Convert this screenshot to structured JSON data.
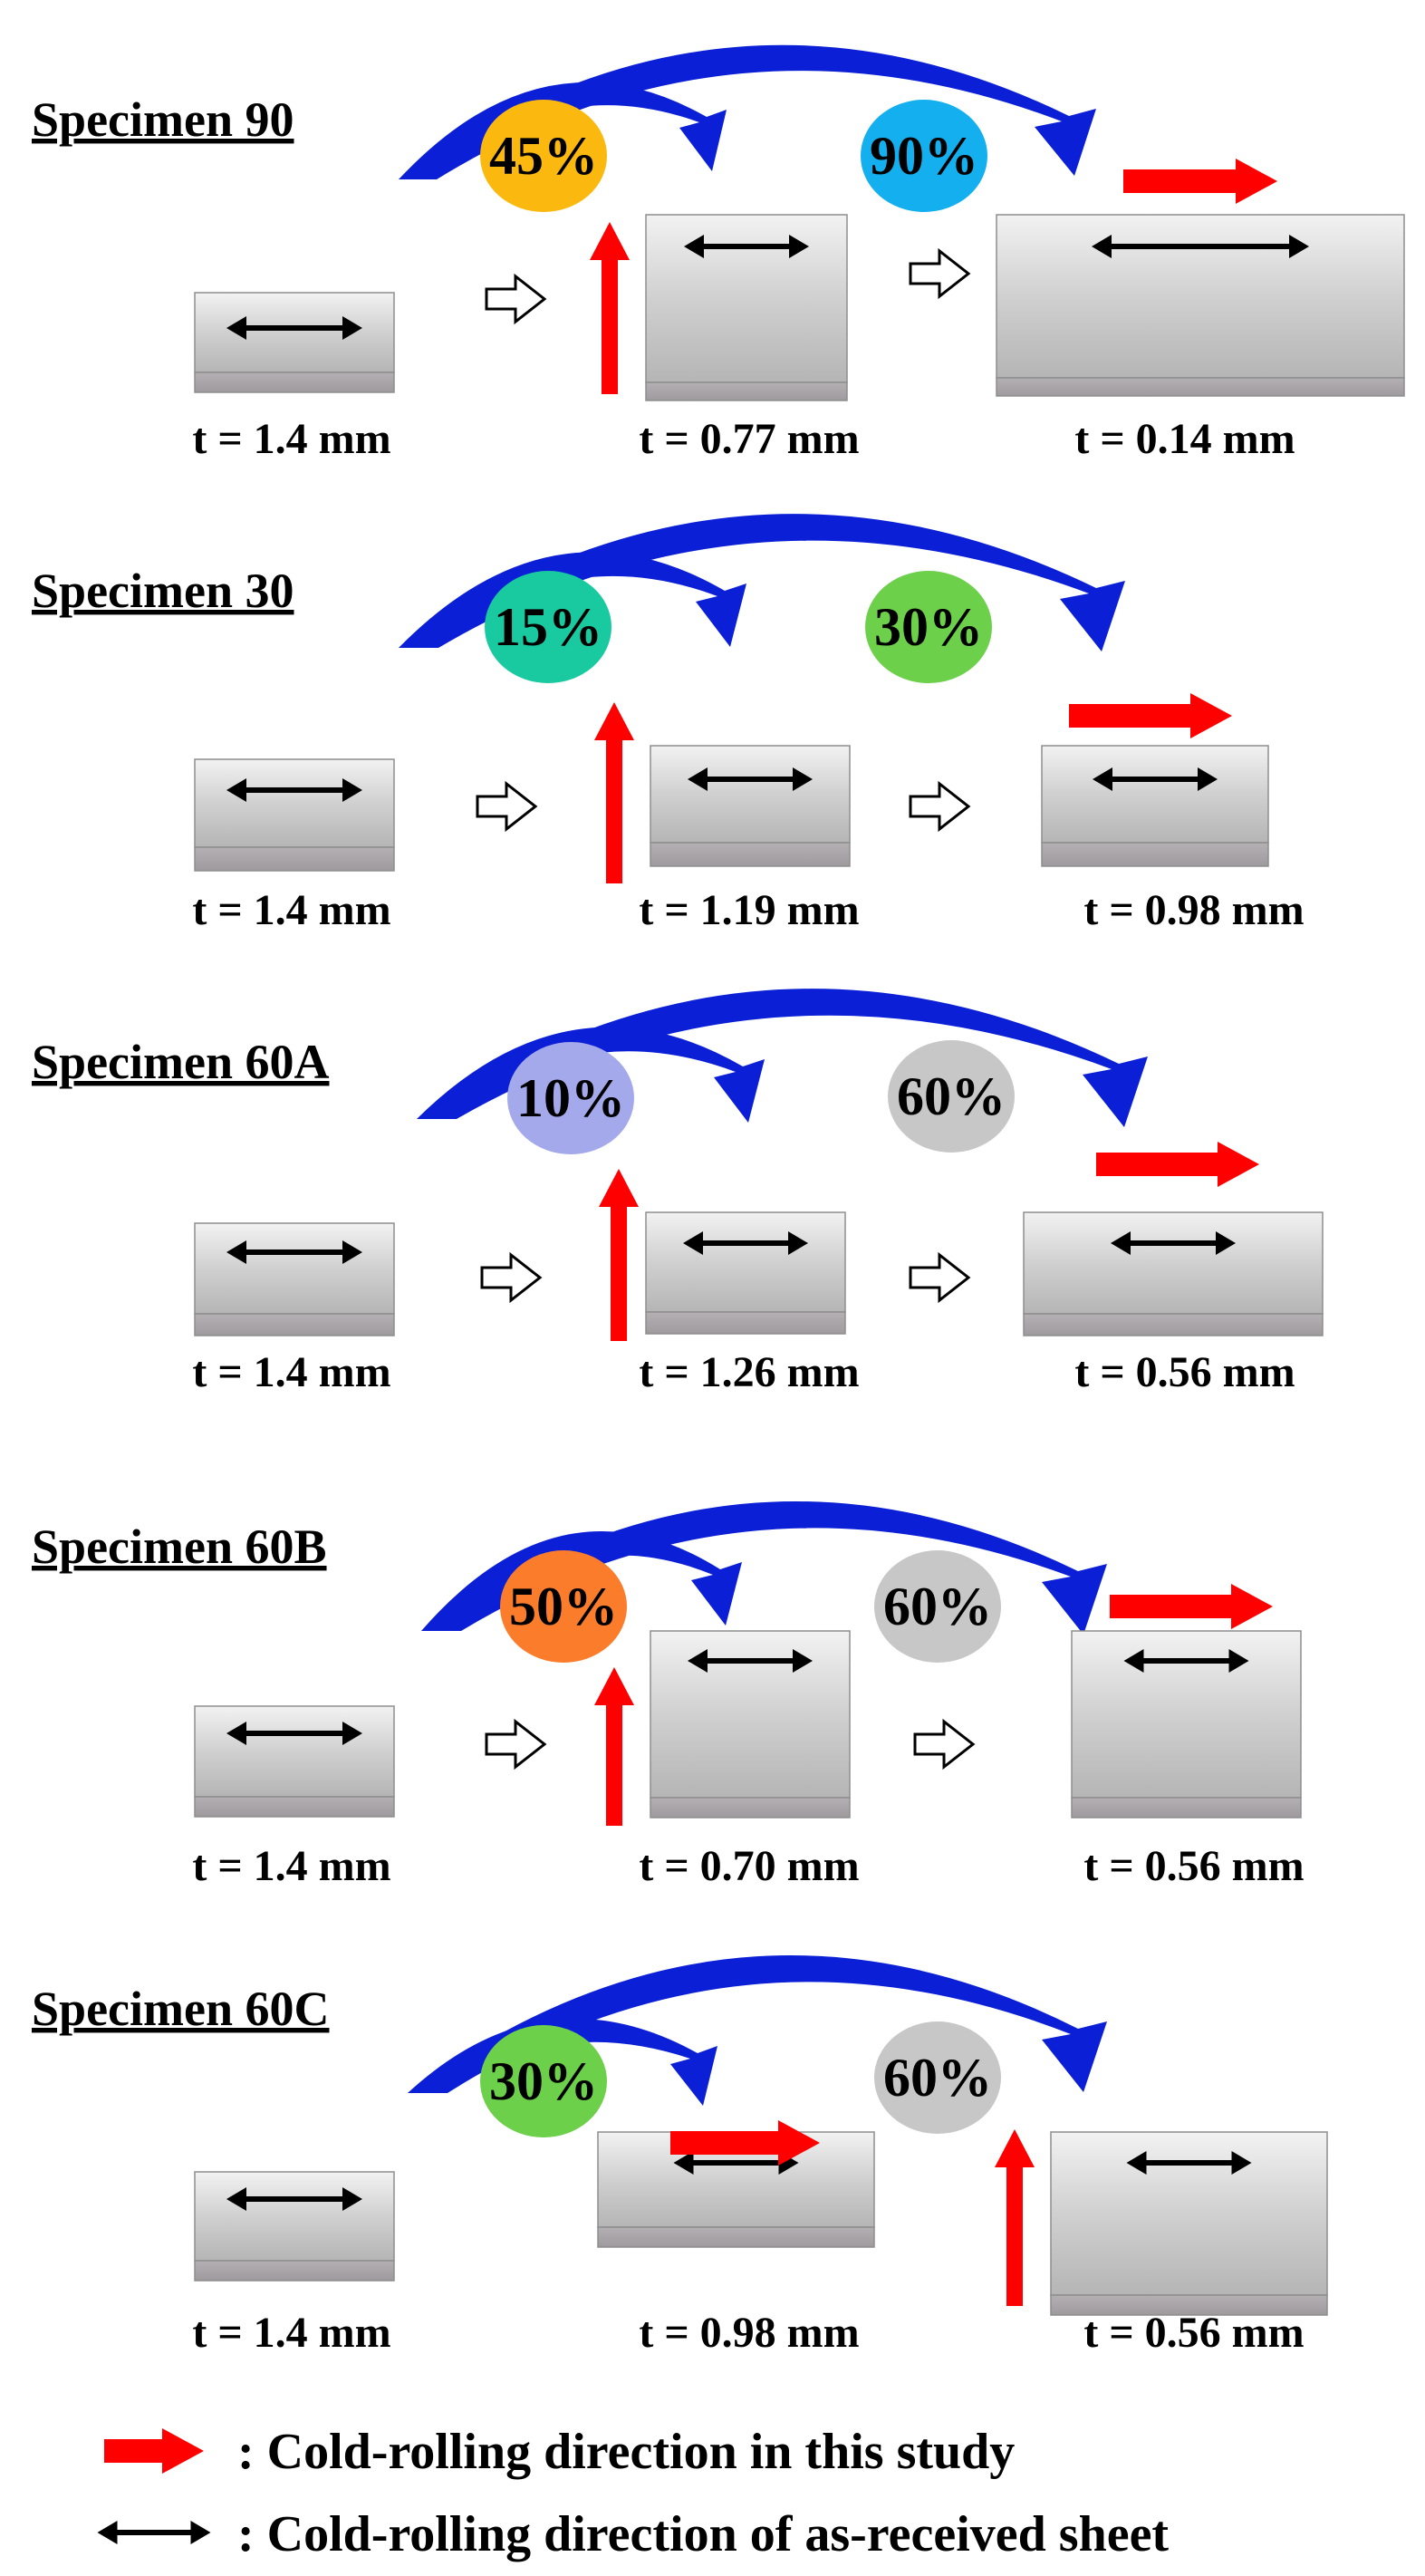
{
  "specimens": [
    {
      "title": "Specimen 90",
      "reductions": [
        {
          "label": "45%",
          "color": "#FBB80E"
        },
        {
          "label": "90%",
          "color": "#13AFEF"
        }
      ],
      "thickness": [
        "t = 1.4 mm",
        "t = 0.77 mm",
        "t = 0.14 mm"
      ]
    },
    {
      "title": "Specimen 30",
      "reductions": [
        {
          "label": "15%",
          "color": "#19C9A0"
        },
        {
          "label": "30%",
          "color": "#6DD04A"
        }
      ],
      "thickness": [
        "t = 1.4 mm",
        "t = 1.19 mm",
        "t = 0.98 mm"
      ]
    },
    {
      "title": "Specimen 60A",
      "reductions": [
        {
          "label": "10%",
          "color": "#A4A9EC"
        },
        {
          "label": "60%",
          "color": "#C7C7C7"
        }
      ],
      "thickness": [
        "t = 1.4 mm",
        "t = 1.26 mm",
        "t = 0.56 mm"
      ]
    },
    {
      "title": "Specimen 60B",
      "reductions": [
        {
          "label": "50%",
          "color": "#FB7D2C"
        },
        {
          "label": "60%",
          "color": "#C7C7C7"
        }
      ],
      "thickness": [
        "t = 1.4 mm",
        "t = 0.70 mm",
        "t = 0.56 mm"
      ]
    },
    {
      "title": "Specimen 60C",
      "reductions": [
        {
          "label": "30%",
          "color": "#6DD04A"
        },
        {
          "label": "60%",
          "color": "#C7C7C7"
        }
      ],
      "thickness": [
        "t = 1.4 mm",
        "t = 0.98 mm",
        "t = 0.56 mm"
      ]
    }
  ],
  "legend": [
    {
      "icon": "red-arrow-icon",
      "text": ": Cold-rolling direction in this study",
      "color": "#FF0000"
    },
    {
      "icon": "double-headed-arrow-icon",
      "text": ": Cold-rolling direction of as-received sheet",
      "color": "#000000"
    }
  ],
  "colors": {
    "curved_arrow": "#0A1FD6",
    "rolling_arrow": "#FF0000",
    "sheet_top": "#E6E6E6",
    "sheet_face": "#BBBBBB",
    "sheet_side": "#A8A5A7"
  }
}
